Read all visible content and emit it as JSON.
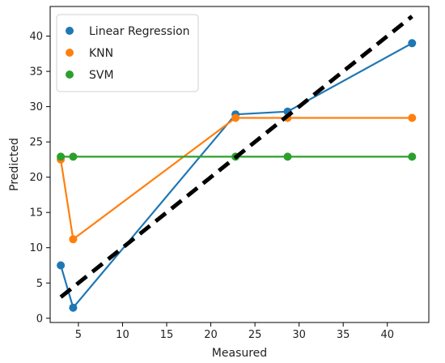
{
  "chart_data": {
    "type": "scatter",
    "title": "",
    "xlabel": "Measured",
    "ylabel": "Predicted",
    "xlim": [
      1.8,
      44.7
    ],
    "ylim": [
      -0.6,
      44.2
    ],
    "xticks": [
      5,
      10,
      15,
      20,
      25,
      30,
      35,
      40
    ],
    "yticks": [
      0,
      5,
      10,
      15,
      20,
      25,
      30,
      35,
      40
    ],
    "grid": false,
    "legend_position": "top-left",
    "series": [
      {
        "name": "Linear Regression",
        "color": "#1f77b4",
        "x": [
          3.0,
          4.4,
          22.8,
          28.7,
          42.8
        ],
        "y": [
          7.5,
          1.5,
          28.9,
          29.3,
          39.0
        ]
      },
      {
        "name": "KNN",
        "color": "#ff7f0e",
        "x": [
          3.0,
          4.4,
          22.8,
          28.7,
          42.8
        ],
        "y": [
          22.5,
          11.2,
          28.4,
          28.4,
          28.4
        ]
      },
      {
        "name": "SVM",
        "color": "#2ca02c",
        "x": [
          3.0,
          4.4,
          22.8,
          28.7,
          42.8
        ],
        "y": [
          22.9,
          22.9,
          22.9,
          22.9,
          22.9
        ]
      }
    ],
    "reference_line": {
      "style": "dashed",
      "color": "#000000",
      "x": [
        3.0,
        42.8
      ],
      "y": [
        3.0,
        42.8
      ]
    }
  }
}
